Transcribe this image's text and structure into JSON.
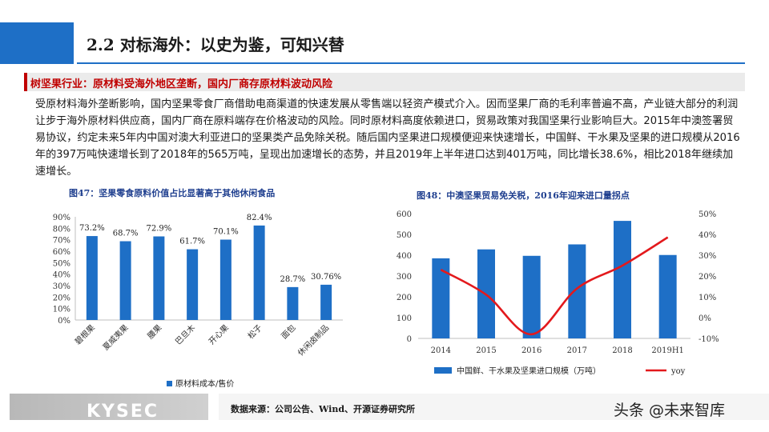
{
  "header": {
    "title": "2.2 对标海外：以史为鉴，可知兴替"
  },
  "section": {
    "title": "树坚果行业：原材料受海外地区垄断，国内厂商存原材料波动风险"
  },
  "body": {
    "paragraph": "受原材料海外垄断影响，国内坚果零食厂商借助电商渠道的快速发展从零售端以轻资产模式介入。因而坚果厂商的毛利率普遍不高，产业链大部分的利润让步于海外原材料供应商，国内厂商在原料端存在价格波动的风险。同时原材料高度依赖进口，贸易政策对我国坚果行业影响巨大。2015年中澳签署贸易协议，约定未来5年内中国对澳大利亚进口的坚果类产品免除关税。随后国内坚果进口规模便迎来快速增长，中国鲜、干水果及坚果的进口规模从2016年的397万吨快速增长到了2018年的565万吨，呈现出加速增长的态势，并且2019年上半年进口达到401万吨，同比增长38.6%，相比2018年继续加速增长。"
  },
  "footer": {
    "logo": "KYSEC",
    "source": "数据来源：公司公告、Wind、开源证券研究所",
    "watermark": "头条 @未来智库"
  },
  "colors": {
    "accent_blue": "#1e6fc6",
    "section_red": "#c00000",
    "yoy_red": "#e3191c"
  },
  "chart_data": [
    {
      "type": "bar",
      "title": "图47：坚果零食原料价值占比显著高于其他休闲食品",
      "categories": [
        "碧根果",
        "夏威夷果",
        "腰果",
        "巴旦木",
        "开心果",
        "松子",
        "面包",
        "休闲卤制品"
      ],
      "series": [
        {
          "name": "原材料成本/售价",
          "values": [
            73.2,
            68.7,
            72.9,
            61.7,
            70.1,
            82.4,
            28.7,
            30.76
          ],
          "labels": [
            "73.2%",
            "68.7%",
            "72.9%",
            "61.7%",
            "70.1%",
            "82.4%",
            "28.7%",
            "30.76%"
          ]
        }
      ],
      "yticks": [
        "0%",
        "10%",
        "20%",
        "30%",
        "40%",
        "50%",
        "60%",
        "70%",
        "80%",
        "90%"
      ],
      "ylim": [
        0,
        90
      ],
      "grid": false,
      "legend": "bottom"
    },
    {
      "type": "bar+line",
      "title": "图48：中澳坚果贸易免关税，2016年迎来进口量拐点",
      "categories": [
        "2014",
        "2015",
        "2016",
        "2017",
        "2018",
        "2019H1"
      ],
      "series": [
        {
          "name": "中国鲜、干水果及坚果进口规模（万吨）",
          "type": "bar",
          "axis": "left",
          "values": [
            385,
            428,
            397,
            452,
            565,
            401
          ]
        },
        {
          "name": "yoy",
          "type": "line",
          "axis": "right",
          "values": [
            23,
            11,
            -8,
            14,
            25,
            38.6
          ]
        }
      ],
      "yticks_left": [
        "0",
        "100",
        "200",
        "300",
        "400",
        "500",
        "600"
      ],
      "yticks_right": [
        "-10%",
        "0%",
        "10%",
        "20%",
        "30%",
        "40%",
        "50%"
      ],
      "ylim_left": [
        0,
        600
      ],
      "ylim_right": [
        -10,
        50
      ],
      "grid": false,
      "legend": "bottom"
    }
  ]
}
